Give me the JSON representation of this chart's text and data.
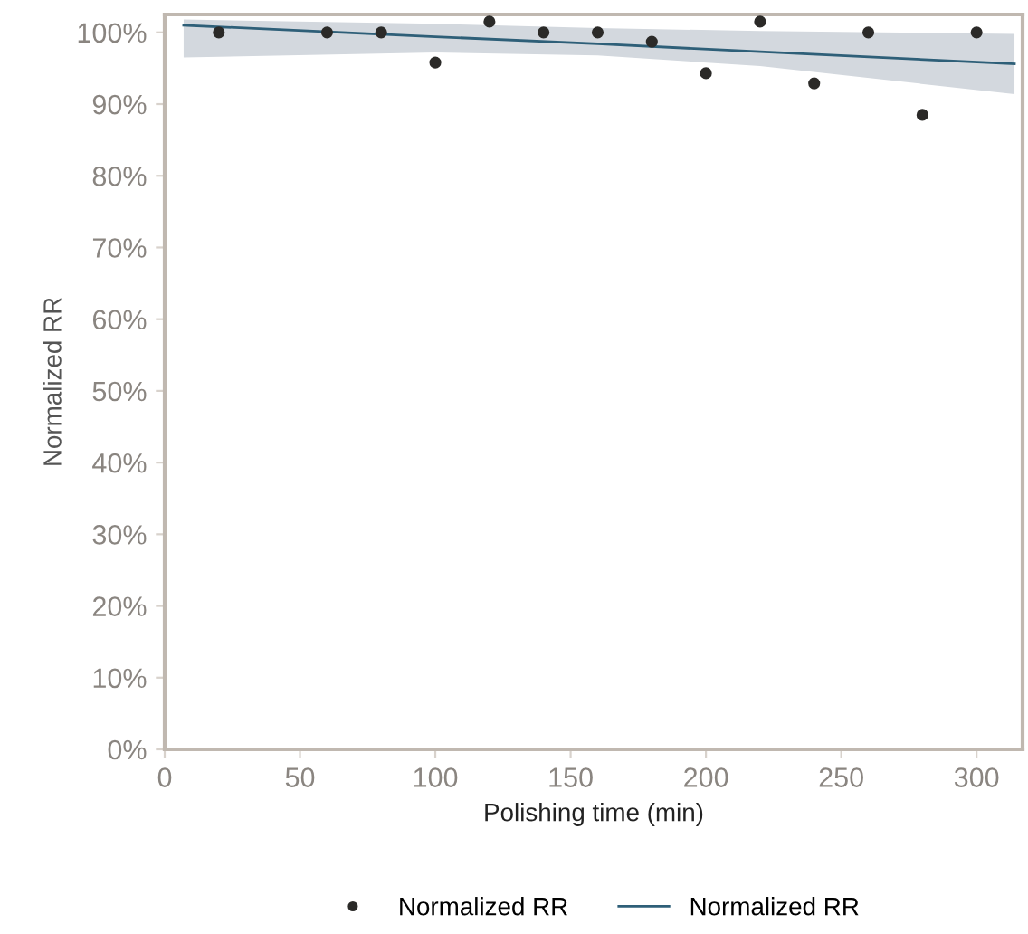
{
  "chart_data": {
    "type": "scatter",
    "xlabel": "Polishing time (min)",
    "ylabel": "Normalized RR",
    "xlim": [
      0,
      317
    ],
    "xticks": [
      0,
      50,
      100,
      150,
      200,
      250,
      300
    ],
    "ylim": [
      0,
      102.5
    ],
    "yticks": [
      {
        "value": 0,
        "label": "0%"
      },
      {
        "value": 10,
        "label": "10%"
      },
      {
        "value": 20,
        "label": "20%"
      },
      {
        "value": 30,
        "label": "30%"
      },
      {
        "value": 40,
        "label": "40%"
      },
      {
        "value": 50,
        "label": "50%"
      },
      {
        "value": 60,
        "label": "60%"
      },
      {
        "value": 70,
        "label": "70%"
      },
      {
        "value": 80,
        "label": "80%"
      },
      {
        "value": 90,
        "label": "90%"
      },
      {
        "value": 100,
        "label": "100%"
      }
    ],
    "grid": false,
    "legend": "bottom",
    "series": [
      {
        "name": "Normalized RR",
        "marker": "circle",
        "color": "#2b2a28",
        "x": [
          20,
          60,
          80,
          100,
          120,
          140,
          160,
          180,
          200,
          220,
          240,
          260,
          280,
          300
        ],
        "values": [
          100,
          100,
          100,
          95.8,
          101.5,
          100,
          100,
          98.7,
          94.3,
          101.5,
          92.9,
          100,
          88.5,
          100
        ]
      },
      {
        "type": "line",
        "marker": "none",
        "name": "Normalized RR",
        "color": "#2e5f78",
        "x": [
          7,
          100,
          160,
          220,
          314
        ],
        "values": [
          101.0,
          99.4,
          98.4,
          97.3,
          95.6
        ],
        "lower": [
          96.5,
          97.2,
          96.8,
          95.3,
          91.4
        ],
        "upper": [
          101.8,
          101.2,
          100.6,
          100.2,
          99.8
        ]
      }
    ]
  }
}
